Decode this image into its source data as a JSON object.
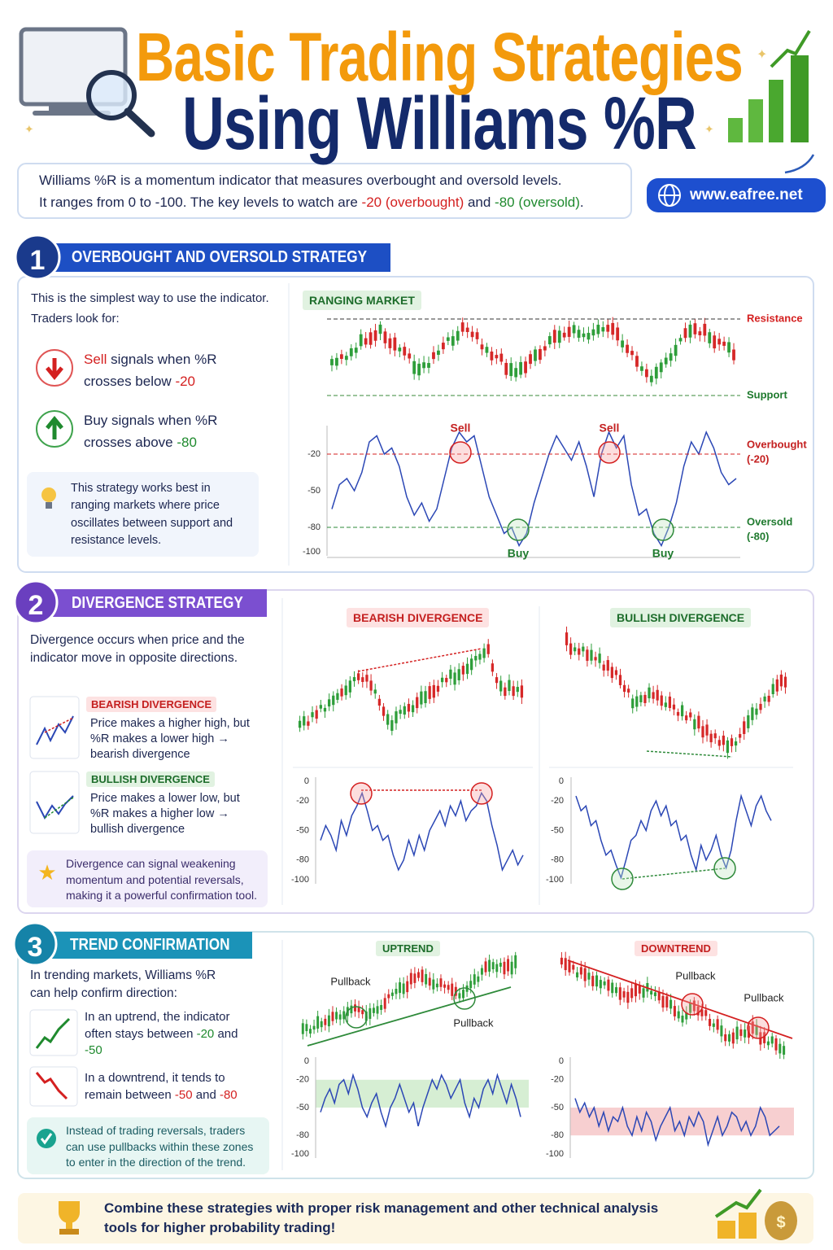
{
  "header": {
    "title_line1": "Basic Trading Strategies",
    "title_line2": "Using Williams %R"
  },
  "intro": {
    "line1": "Williams %R is a momentum indicator that measures overbought and oversold levels.",
    "line2": [
      "It ranges from 0 to -100. The key levels to watch are ",
      "-20 (overbought)",
      " and ",
      "-80 (oversold)",
      "."
    ]
  },
  "website": "www.eafree.net",
  "section1": {
    "number": "1",
    "title": "OVERBOUGHT AND OVERSOLD STRATEGY",
    "intro": "This is the simplest way to use the indicator. Traders look for:",
    "sell": [
      "Sell",
      " signals when %R crosses below ",
      "-20"
    ],
    "buy": [
      "Buy signals when %R crosses above ",
      "-80"
    ],
    "tip": "This strategy works best in ranging markets where price oscillates between support and resistance levels.",
    "chart": {
      "type": "line",
      "label": "RANGING MARKET",
      "resistance": "Resistance",
      "support": "Support",
      "sell_labels": [
        "Sell",
        "Sell"
      ],
      "buy_labels": [
        "Buy",
        "Buy"
      ],
      "overbought": [
        "Overbought",
        "(-20)"
      ],
      "oversold": [
        "Oversold",
        "(-80)"
      ],
      "ylim": [
        -100,
        0
      ],
      "yticks": [
        -20,
        -50,
        -80,
        -100
      ],
      "color": "#2b47b5",
      "values": [
        -65,
        -45,
        -40,
        -50,
        -35,
        -10,
        -5,
        -20,
        -15,
        -30,
        -55,
        -70,
        -60,
        -75,
        -65,
        -40,
        -15,
        -2,
        -10,
        -5,
        -30,
        -55,
        -70,
        -85,
        -80,
        -95,
        -85,
        -60,
        -40,
        -20,
        -5,
        -15,
        -25,
        -10,
        -30,
        -55,
        -20,
        -2,
        -15,
        -5,
        -45,
        -70,
        -65,
        -85,
        -95,
        -80,
        -60,
        -30,
        -10,
        -20,
        -2,
        -15,
        -35,
        -45,
        -40
      ]
    }
  },
  "section2": {
    "number": "2",
    "title": "DIVERGENCE STRATEGY",
    "intro": "Divergence occurs when price and the indicator move in opposite directions.",
    "bearish_tag": "BEARISH DIVERGENCE",
    "bearish_text": "Price makes a higher high, but %R makes a lower high → bearish divergence",
    "bullish_tag": "BULLISH DIVERGENCE",
    "bullish_text": "Price makes a lower low, but %R makes a higher low → bullish divergence",
    "tip": "Divergence can signal weakening momentum and potential reversals, making it a powerful confirmation tool.",
    "charts": [
      {
        "type": "line",
        "label": "BEARISH DIVERGENCE",
        "ylim": [
          -100,
          0
        ],
        "yticks": [
          0,
          -20,
          -50,
          -80,
          -100
        ],
        "color": "#2b47b5",
        "values": [
          -60,
          -45,
          -55,
          -70,
          -40,
          -55,
          -35,
          -25,
          -12,
          -30,
          -50,
          -45,
          -60,
          -55,
          -75,
          -90,
          -80,
          -60,
          -75,
          -55,
          -70,
          -50,
          -40,
          -30,
          -45,
          -25,
          -35,
          -20,
          -40,
          -30,
          -25,
          -12,
          -20,
          -45,
          -65,
          -90,
          -80,
          -70,
          -85,
          -75
        ]
      },
      {
        "type": "line",
        "label": "BULLISH DIVERGENCE",
        "ylim": [
          -100,
          0
        ],
        "yticks": [
          0,
          -20,
          -50,
          -80,
          -100
        ],
        "color": "#2b47b5",
        "values": [
          -15,
          -30,
          -25,
          -45,
          -40,
          -60,
          -75,
          -70,
          -85,
          -98,
          -80,
          -60,
          -55,
          -40,
          -50,
          -30,
          -20,
          -35,
          -25,
          -45,
          -40,
          -60,
          -55,
          -75,
          -90,
          -65,
          -80,
          -70,
          -55,
          -75,
          -88,
          -70,
          -40,
          -15,
          -30,
          -45,
          -25,
          -15,
          -30,
          -40
        ]
      }
    ]
  },
  "section3": {
    "number": "3",
    "title": "TREND CONFIRMATION",
    "intro": "In trending markets, Williams %R can help confirm direction:",
    "up": [
      "In an uptrend, the indicator often stays between ",
      "-20",
      " and ",
      "-50"
    ],
    "down": [
      "In a downtrend, it tends to remain between ",
      "-50",
      " and ",
      "-80"
    ],
    "tip": "Instead of trading reversals, traders can use pullbacks within these zones to enter in the direction of the trend.",
    "charts": [
      {
        "type": "line",
        "label": "UPTREND",
        "pullbacks": [
          "Pullback",
          "Pullback"
        ],
        "ylim": [
          -100,
          0
        ],
        "yticks": [
          0,
          -20,
          -50,
          -80,
          -100
        ],
        "color": "#2b47b5",
        "values": [
          -55,
          -40,
          -30,
          -45,
          -25,
          -20,
          -35,
          -15,
          -30,
          -50,
          -60,
          -45,
          -35,
          -55,
          -70,
          -50,
          -40,
          -25,
          -40,
          -55,
          -45,
          -70,
          -50,
          -35,
          -20,
          -30,
          -15,
          -25,
          -40,
          -30,
          -20,
          -45,
          -60,
          -40,
          -50,
          -30,
          -20,
          -35,
          -15,
          -30,
          -45,
          -25,
          -40,
          -60
        ]
      },
      {
        "type": "line",
        "label": "DOWNTREND",
        "pullbacks": [
          "Pullback",
          "Pullback"
        ],
        "ylim": [
          -100,
          0
        ],
        "yticks": [
          0,
          -20,
          -50,
          -80,
          -100
        ],
        "color": "#2b47b5",
        "values": [
          -40,
          -55,
          -45,
          -60,
          -50,
          -70,
          -55,
          -75,
          -60,
          -65,
          -50,
          -70,
          -80,
          -60,
          -75,
          -55,
          -65,
          -85,
          -70,
          -60,
          -50,
          -75,
          -65,
          -80,
          -60,
          -70,
          -55,
          -65,
          -90,
          -75,
          -60,
          -80,
          -70,
          -55,
          -60,
          -75,
          -65,
          -80,
          -70,
          -50,
          -60,
          -80,
          -75,
          -70
        ]
      }
    ]
  },
  "footer": "Combine these strategies with proper risk management and other technical analysis tools for higher probability trading!"
}
